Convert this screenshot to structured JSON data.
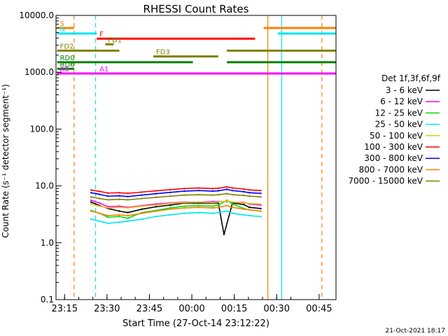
{
  "chart_data": {
    "type": "line",
    "title": "RHESSI Count Rates",
    "xlabel": "Start Time (27-Oct-14 23:12:22)",
    "ylabel": "Count Rate (s⁻¹ detector segment⁻¹)",
    "ylog": true,
    "ylim": [
      0.1,
      10000
    ],
    "xlim_minutes_from_start": [
      -0.4,
      98.6
    ],
    "grid": false,
    "x_ticks": [
      {
        "label": "23:15",
        "minute": 2.63
      },
      {
        "label": "23:30",
        "minute": 17.63
      },
      {
        "label": "23:45",
        "minute": 32.63
      },
      {
        "label": "00:00",
        "minute": 47.63
      },
      {
        "label": "00:15",
        "minute": 62.63
      },
      {
        "label": "00:30",
        "minute": 77.63
      },
      {
        "label": "00:45",
        "minute": 92.63
      }
    ],
    "y_ticks": [
      {
        "label": "10000.0",
        "value": 10000
      },
      {
        "label": "1000.0",
        "value": 1000
      },
      {
        "label": "100.0",
        "value": 100
      },
      {
        "label": "10.0",
        "value": 10
      },
      {
        "label": "1.0",
        "value": 1
      },
      {
        "label": "0.1",
        "value": 0.1
      }
    ],
    "legend": {
      "placement": "right",
      "title": "Det 1f,3f,6f,9f",
      "entries": [
        {
          "label": "3 - 6 keV",
          "color": "#000000"
        },
        {
          "label": "6 - 12 keV",
          "color": "#ff00ff"
        },
        {
          "label": "12 - 25 keV",
          "color": "#00e000"
        },
        {
          "label": "25 - 50 keV",
          "color": "#00e5ee"
        },
        {
          "label": "50 - 100 keV",
          "color": "#e8c800"
        },
        {
          "label": "100 - 300 keV",
          "color": "#ff0000"
        },
        {
          "label": "300 - 800 keV",
          "color": "#0000ff"
        },
        {
          "label": "800 - 7000 keV",
          "color": "#ff8000"
        },
        {
          "label": "7000 - 15000 keV",
          "color": "#808000"
        }
      ]
    },
    "series": [
      {
        "name": "3 - 6 keV",
        "color": "#000000",
        "points": [
          [
            12,
            5.2
          ],
          [
            15,
            4.5
          ],
          [
            18,
            4
          ],
          [
            22,
            3.6
          ],
          [
            25,
            3.4
          ],
          [
            30,
            3.9
          ],
          [
            35,
            4.3
          ],
          [
            40,
            4.6
          ],
          [
            45,
            5
          ],
          [
            50,
            5
          ],
          [
            55,
            5
          ],
          [
            57,
            5
          ],
          [
            59,
            1.4
          ],
          [
            62,
            5
          ],
          [
            66,
            4.7
          ],
          [
            68,
            4.2
          ],
          [
            72,
            4
          ]
        ]
      },
      {
        "name": "6 - 12 keV",
        "color": "#ff00ff",
        "points": [
          [
            12,
            5.6
          ],
          [
            15,
            5
          ],
          [
            18,
            4.3
          ],
          [
            22,
            4.4
          ],
          [
            25,
            4.2
          ],
          [
            30,
            4.5
          ],
          [
            35,
            4.8
          ],
          [
            40,
            5
          ],
          [
            45,
            5.2
          ],
          [
            50,
            5.2
          ],
          [
            55,
            5.3
          ],
          [
            57,
            5.3
          ],
          [
            60,
            5.3
          ],
          [
            62,
            5.2
          ],
          [
            66,
            5.1
          ],
          [
            68,
            4.8
          ],
          [
            72,
            4.6
          ]
        ]
      },
      {
        "name": "12 - 25 keV",
        "color": "#00e000",
        "points": [
          [
            12,
            3.7
          ],
          [
            15,
            3.3
          ],
          [
            18,
            2.8
          ],
          [
            22,
            2.9
          ],
          [
            25,
            2.7
          ],
          [
            30,
            3.4
          ],
          [
            35,
            3.7
          ],
          [
            40,
            4.1
          ],
          [
            45,
            4.4
          ],
          [
            50,
            4.5
          ],
          [
            55,
            4.4
          ],
          [
            57,
            4.6
          ],
          [
            60,
            5.6
          ],
          [
            62,
            4.8
          ],
          [
            66,
            4
          ],
          [
            68,
            3.8
          ],
          [
            72,
            3.6
          ]
        ]
      },
      {
        "name": "25 - 50 keV",
        "color": "#00e5ee",
        "points": [
          [
            12,
            2.6
          ],
          [
            15,
            2.4
          ],
          [
            18,
            2.2
          ],
          [
            22,
            2.3
          ],
          [
            25,
            2.4
          ],
          [
            30,
            2.6
          ],
          [
            35,
            2.9
          ],
          [
            40,
            3.1
          ],
          [
            45,
            3.3
          ],
          [
            50,
            3.4
          ],
          [
            55,
            3.3
          ],
          [
            57,
            3.4
          ],
          [
            60,
            3.6
          ],
          [
            62,
            3.3
          ],
          [
            66,
            3.1
          ],
          [
            68,
            3
          ],
          [
            72,
            2.9
          ]
        ]
      },
      {
        "name": "50 - 100 keV",
        "color": "#e8c800",
        "points": [
          [
            12,
            4.8
          ],
          [
            15,
            4.4
          ],
          [
            18,
            4.1
          ],
          [
            22,
            4.2
          ],
          [
            25,
            4.1
          ],
          [
            30,
            4.4
          ],
          [
            35,
            4.6
          ],
          [
            40,
            4.9
          ],
          [
            45,
            5.1
          ],
          [
            50,
            5.2
          ],
          [
            55,
            5.1
          ],
          [
            57,
            5.2
          ],
          [
            60,
            5.4
          ],
          [
            62,
            5.2
          ],
          [
            66,
            5
          ],
          [
            68,
            4.9
          ],
          [
            72,
            4.8
          ]
        ]
      },
      {
        "name": "100 - 300 keV",
        "color": "#ff0000",
        "points": [
          [
            12,
            8.5
          ],
          [
            15,
            8
          ],
          [
            18,
            7.5
          ],
          [
            22,
            7.6
          ],
          [
            25,
            7.4
          ],
          [
            30,
            7.8
          ],
          [
            35,
            8.2
          ],
          [
            40,
            8.6
          ],
          [
            45,
            9
          ],
          [
            50,
            9.2
          ],
          [
            55,
            9
          ],
          [
            57,
            9.1
          ],
          [
            60,
            9.6
          ],
          [
            62,
            9.2
          ],
          [
            66,
            8.8
          ],
          [
            68,
            8.5
          ],
          [
            72,
            8.3
          ]
        ]
      },
      {
        "name": "300 - 800 keV",
        "color": "#0000ff",
        "points": [
          [
            12,
            7.6
          ],
          [
            15,
            7.1
          ],
          [
            18,
            6.6
          ],
          [
            22,
            6.7
          ],
          [
            25,
            6.5
          ],
          [
            30,
            6.9
          ],
          [
            35,
            7.3
          ],
          [
            40,
            7.7
          ],
          [
            45,
            8.1
          ],
          [
            50,
            8.3
          ],
          [
            55,
            8.1
          ],
          [
            57,
            8.2
          ],
          [
            60,
            8.7
          ],
          [
            62,
            8.3
          ],
          [
            66,
            7.9
          ],
          [
            68,
            7.6
          ],
          [
            72,
            7.4
          ]
        ]
      },
      {
        "name": "800 - 7000 keV",
        "color": "#ff8000",
        "points": [
          [
            12,
            3.6
          ],
          [
            15,
            3.3
          ],
          [
            18,
            3
          ],
          [
            22,
            3.1
          ],
          [
            25,
            3
          ],
          [
            30,
            3.3
          ],
          [
            35,
            3.6
          ],
          [
            40,
            3.9
          ],
          [
            45,
            4.1
          ],
          [
            50,
            4.2
          ],
          [
            55,
            4.1
          ],
          [
            57,
            4.2
          ],
          [
            60,
            4.5
          ],
          [
            62,
            4.2
          ],
          [
            66,
            3.9
          ],
          [
            68,
            3.8
          ],
          [
            72,
            3.6
          ]
        ]
      },
      {
        "name": "7000 - 15000 keV",
        "color": "#808000",
        "points": [
          [
            12,
            6.4
          ],
          [
            15,
            6
          ],
          [
            18,
            5.7
          ],
          [
            22,
            5.8
          ],
          [
            25,
            5.7
          ],
          [
            30,
            6
          ],
          [
            35,
            6.3
          ],
          [
            40,
            6.6
          ],
          [
            45,
            6.9
          ],
          [
            50,
            7
          ],
          [
            55,
            6.9
          ],
          [
            57,
            7
          ],
          [
            60,
            7.3
          ],
          [
            62,
            7
          ],
          [
            66,
            6.8
          ],
          [
            68,
            6.6
          ],
          [
            72,
            6.4
          ]
        ]
      }
    ],
    "flag_bars": [
      {
        "label": "S",
        "color": "#ff8000",
        "value": 6000,
        "segments": [
          [
            0,
            6
          ],
          [
            73,
            98.6
          ]
        ]
      },
      {
        "label": "N",
        "color": "#00e5ee",
        "value": 4800,
        "segments": [
          [
            0,
            14
          ],
          [
            78,
            98.6
          ]
        ]
      },
      {
        "label": "F",
        "color": "#ff0000",
        "value": 3900,
        "segments": [
          [
            14,
            70
          ]
        ]
      },
      {
        "label": "FD1",
        "color": "#808000",
        "value": 3100,
        "segments": [
          [
            17,
            20
          ]
        ]
      },
      {
        "label": "FD2",
        "color": "#808000",
        "value": 2400,
        "segments": [
          [
            0,
            22
          ],
          [
            60,
            98.6
          ]
        ]
      },
      {
        "label": "FD3",
        "color": "#808000",
        "value": 1900,
        "segments": [
          [
            34,
            57
          ]
        ]
      },
      {
        "label": "RD0",
        "color": "#008000",
        "value": 1500,
        "segments": [
          [
            0,
            48
          ],
          [
            60,
            98.6
          ]
        ]
      },
      {
        "label": "RD6",
        "color": "#008000",
        "value": 1150,
        "segments": [
          [
            0,
            6
          ]
        ]
      },
      {
        "label": "A1",
        "color": "#ff00ff",
        "value": 950,
        "segments": [
          [
            14,
            20
          ]
        ]
      },
      {
        "label": "A0",
        "color": "#ff00ff",
        "value": 950,
        "segments": [
          [
            0,
            98.6
          ]
        ]
      }
    ],
    "vertical_markers": [
      {
        "minute": 6.0,
        "color": "#ff8000",
        "style": "dashed"
      },
      {
        "minute": 13.6,
        "color": "#00e5ee",
        "style": "dashed"
      },
      {
        "minute": 74.5,
        "color": "#ff8000",
        "style": "solid"
      },
      {
        "minute": 79.4,
        "color": "#00e5ee",
        "style": "solid"
      },
      {
        "minute": 93.6,
        "color": "#ff8000",
        "style": "dashed"
      }
    ]
  },
  "timestamp": "21-Oct-2021 18:17"
}
